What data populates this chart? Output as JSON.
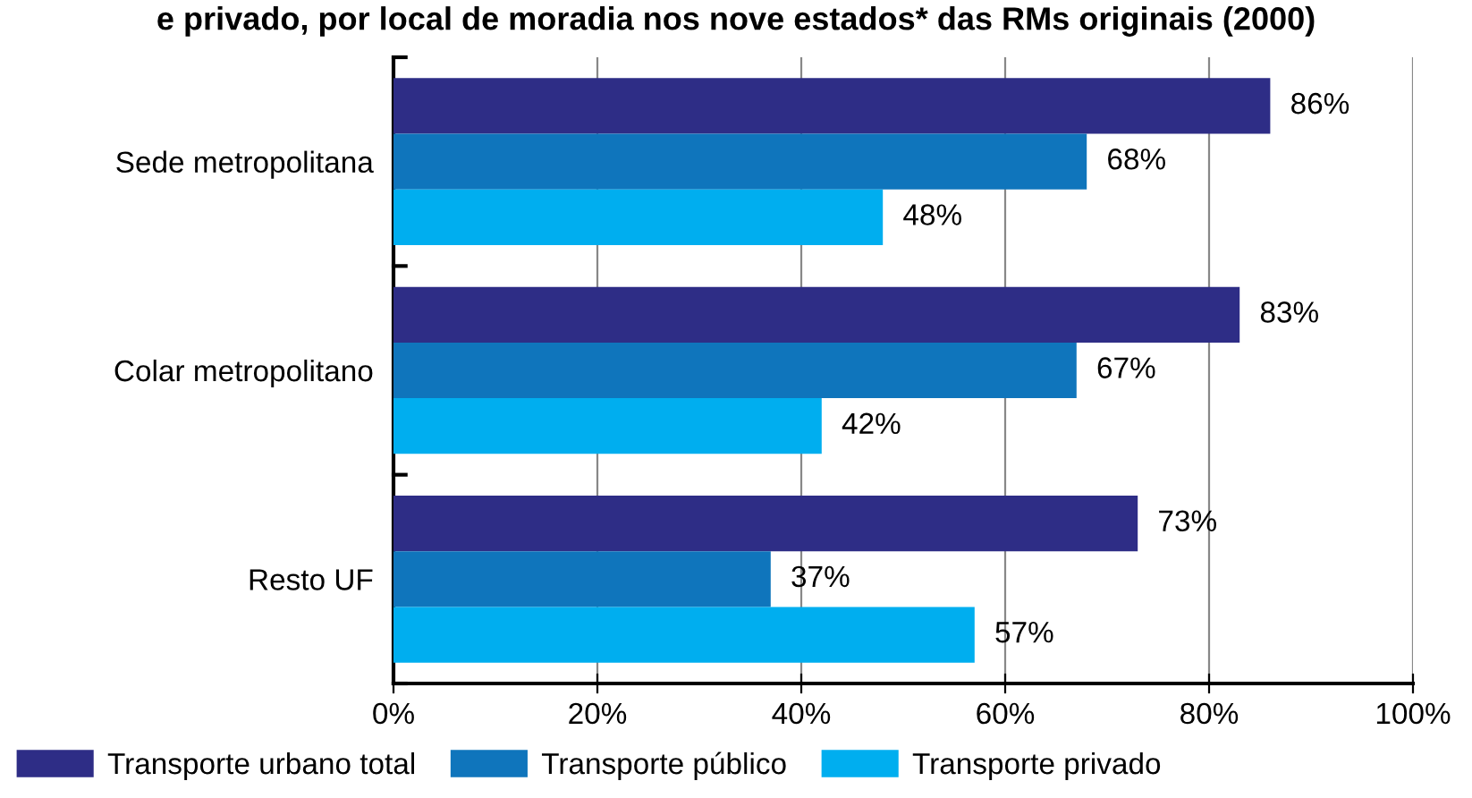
{
  "chart_data": {
    "type": "bar",
    "orientation": "horizontal",
    "title": "e privado, por local de moradia nos nove estados* das RMs originais (2000)",
    "categories": [
      "Sede metropolitana",
      "Colar metropolitano",
      "Resto UF"
    ],
    "series": [
      {
        "name": "Transporte urbano total",
        "color": "#2e2d86",
        "values": [
          86,
          83,
          73
        ],
        "value_labels": [
          "86%",
          "83%",
          "73%"
        ]
      },
      {
        "name": "Transporte público",
        "color": "#0f75bc",
        "values": [
          68,
          67,
          37
        ],
        "value_labels": [
          "68%",
          "67%",
          "37%"
        ]
      },
      {
        "name": "Transporte privado",
        "color": "#00aeef",
        "values": [
          48,
          42,
          57
        ],
        "value_labels": [
          "48%",
          "42%",
          "57%"
        ]
      }
    ],
    "xlim": [
      0,
      100
    ],
    "xticks": [
      {
        "value": 0,
        "label": "0%"
      },
      {
        "value": 20,
        "label": "20%"
      },
      {
        "value": 40,
        "label": "40%"
      },
      {
        "value": 60,
        "label": "60%"
      },
      {
        "value": 80,
        "label": "80%"
      },
      {
        "value": 100,
        "label": "100%"
      }
    ],
    "grid": "x",
    "legend": "bottom"
  }
}
